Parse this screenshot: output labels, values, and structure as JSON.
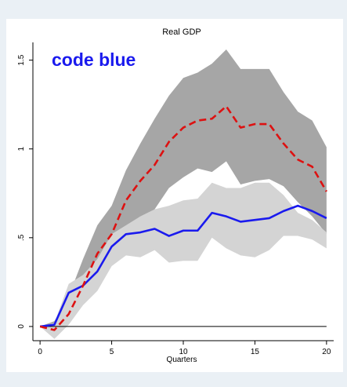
{
  "chart_data": {
    "type": "line",
    "title": "Real GDP",
    "annotation": "code blue",
    "xlabel": "Quarters",
    "ylabel": "",
    "xlim": [
      -0.5,
      20.5
    ],
    "ylim": [
      -0.08,
      1.6
    ],
    "xticks": [
      0,
      5,
      10,
      15,
      20
    ],
    "xtick_labels": [
      "0",
      "5",
      "10",
      "15",
      "20"
    ],
    "yticks": [
      0,
      0.5,
      1,
      1.5
    ],
    "ytick_labels": [
      "0",
      ".5",
      "1",
      "1.5"
    ],
    "grid": false,
    "x": [
      0,
      1,
      2,
      3,
      4,
      5,
      6,
      7,
      8,
      9,
      10,
      11,
      12,
      13,
      14,
      15,
      16,
      17,
      18,
      19,
      20
    ],
    "series": [
      {
        "color": "#1a1aee",
        "style": "solid",
        "values": [
          0,
          0.01,
          0.19,
          0.23,
          0.31,
          0.45,
          0.52,
          0.53,
          0.55,
          0.51,
          0.54,
          0.54,
          0.64,
          0.62,
          0.59,
          0.6,
          0.61,
          0.65,
          0.68,
          0.65,
          0.61
        ]
      },
      {
        "color": "#dd1111",
        "style": "dashed",
        "values": [
          0,
          -0.02,
          0.07,
          0.23,
          0.41,
          0.52,
          0.71,
          0.82,
          0.91,
          1.04,
          1.12,
          1.16,
          1.17,
          1.24,
          1.12,
          1.14,
          1.14,
          1.03,
          0.94,
          0.9,
          0.76
        ]
      }
    ],
    "bands": [
      {
        "color": "#a6a6a6",
        "upper": [
          0,
          0.03,
          0.17,
          0.38,
          0.57,
          0.68,
          0.88,
          1.03,
          1.17,
          1.3,
          1.4,
          1.43,
          1.48,
          1.56,
          1.45,
          1.45,
          1.45,
          1.32,
          1.21,
          1.16,
          1.01
        ],
        "lower": [
          0,
          -0.02,
          0.02,
          0.18,
          0.27,
          0.38,
          0.52,
          0.59,
          0.66,
          0.78,
          0.84,
          0.89,
          0.87,
          0.93,
          0.8,
          0.82,
          0.83,
          0.79,
          0.7,
          0.62,
          0.52
        ]
      },
      {
        "color": "#d4d4d4",
        "upper": [
          0,
          0.02,
          0.24,
          0.29,
          0.38,
          0.52,
          0.57,
          0.62,
          0.66,
          0.68,
          0.71,
          0.72,
          0.81,
          0.78,
          0.78,
          0.81,
          0.81,
          0.74,
          0.64,
          0.6,
          0.53
        ],
        "lower": [
          0,
          -0.07,
          0.01,
          0.12,
          0.2,
          0.34,
          0.4,
          0.39,
          0.43,
          0.36,
          0.37,
          0.37,
          0.5,
          0.44,
          0.4,
          0.39,
          0.43,
          0.51,
          0.51,
          0.49,
          0.44
        ]
      }
    ]
  }
}
